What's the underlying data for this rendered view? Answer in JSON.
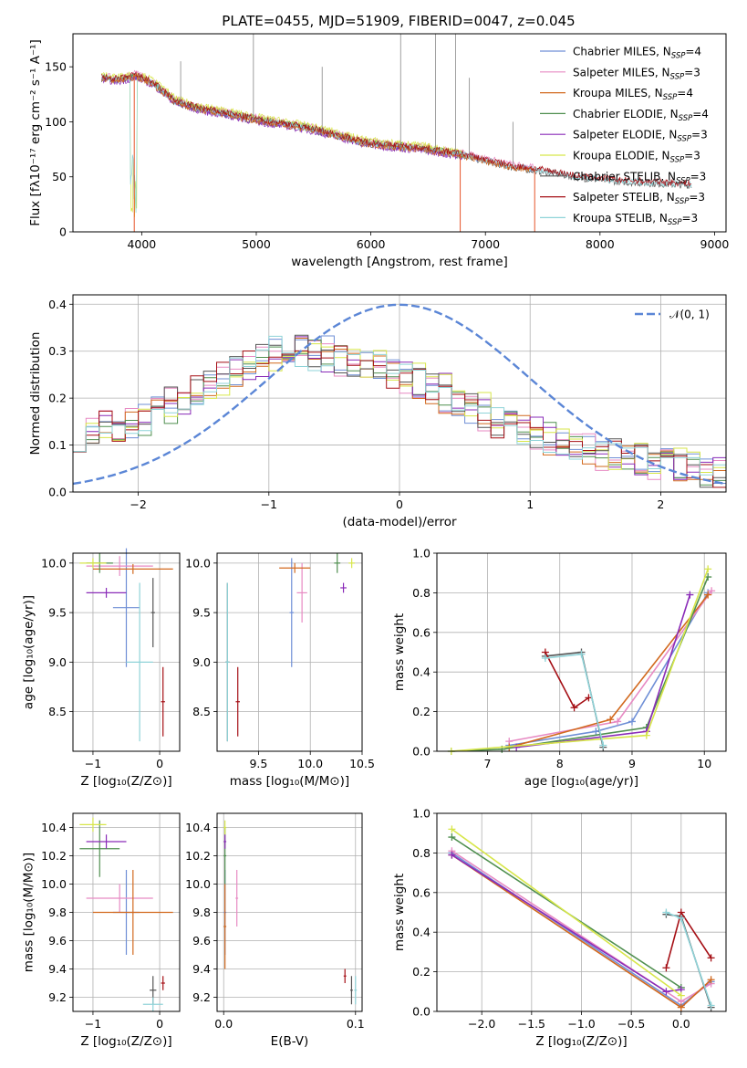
{
  "title": "PLATE=0455, MJD=51909, FIBERID=0047, z=0.045",
  "colors": {
    "Chabrier MILES": "#6f8fd6",
    "Salpeter MILES": "#e78ac3",
    "Kroupa MILES": "#d2691e",
    "Chabrier ELODIE": "#4f8f4f",
    "Salpeter ELODIE": "#8a2bb8",
    "Kroupa ELODIE": "#d7e64a",
    "Chabrier STELIB": "#555555",
    "Salpeter STELIB": "#a50f15",
    "Kroupa STELIB": "#8fd3d8",
    "normal": "#5b86d6",
    "spec_orange": "#e6542a"
  },
  "chart_data": [
    {
      "type": "line",
      "xlabel": "wavelength [Angstrom, rest frame]",
      "ylabel": "Flux [fλ10⁻¹⁷ erg cm⁻² s⁻¹ A⁻¹]",
      "xlim": [
        3400,
        9100
      ],
      "ylim": [
        0,
        180
      ],
      "xticks": [
        "4000",
        "5000",
        "6000",
        "7000",
        "8000",
        "9000"
      ],
      "yticks": [
        "0",
        "50",
        "100",
        "150"
      ],
      "legend_position": "top-right",
      "legend": [
        {
          "name": "Chabrier MILES",
          "nssp": "4"
        },
        {
          "name": "Salpeter MILES",
          "nssp": "3"
        },
        {
          "name": "Kroupa MILES",
          "nssp": "4"
        },
        {
          "name": "Chabrier ELODIE",
          "nssp": "4"
        },
        {
          "name": "Salpeter ELODIE",
          "nssp": "3"
        },
        {
          "name": "Kroupa ELODIE",
          "nssp": "3"
        },
        {
          "name": "Chabrier STELIB",
          "nssp": "3"
        },
        {
          "name": "Salpeter STELIB",
          "nssp": "3"
        },
        {
          "name": "Kroupa STELIB",
          "nssp": "3"
        }
      ],
      "continuum": {
        "x": [
          3650,
          3800,
          3950,
          4100,
          4300,
          4500,
          4700,
          4900,
          5100,
          5300,
          5500,
          5700,
          5900,
          6100,
          6300,
          6500,
          6600,
          6800,
          7000,
          7200,
          7400,
          7600,
          7800,
          8000,
          8200,
          8400,
          8600,
          8800
        ],
        "y": [
          140,
          138,
          142,
          135,
          118,
          112,
          108,
          104,
          100,
          97,
          93,
          88,
          82,
          79,
          77,
          75,
          73,
          70,
          65,
          60,
          57,
          54,
          50,
          48,
          46,
          45,
          44,
          43
        ]
      },
      "drops": [
        {
          "x": 3935,
          "y": 0
        },
        {
          "x": 6780,
          "y": 0
        },
        {
          "x": 7430,
          "y": 0
        }
      ],
      "spikes": [
        {
          "x": 4340,
          "y": 155
        },
        {
          "x": 4975,
          "y": 180
        },
        {
          "x": 5575,
          "y": 150
        },
        {
          "x": 6260,
          "y": 180
        },
        {
          "x": 6565,
          "y": 180
        },
        {
          "x": 6740,
          "y": 180
        },
        {
          "x": 6860,
          "y": 140
        },
        {
          "x": 7240,
          "y": 100
        }
      ]
    },
    {
      "type": "line",
      "xlabel": "(data-model)/error",
      "ylabel": "Normed distribution",
      "xlim": [
        -2.5,
        2.5
      ],
      "ylim": [
        0,
        0.42
      ],
      "xticks": [
        "−2",
        "−1",
        "0",
        "1",
        "2"
      ],
      "yticks": [
        "0.0",
        "0.1",
        "0.2",
        "0.3",
        "0.4"
      ],
      "legend_position": "top-right",
      "legend": [
        {
          "name": "𝒩(0, 1)"
        }
      ],
      "bin_width": 0.1,
      "series_base": {
        "x": [
          -2.45,
          -2.35,
          -2.25,
          -2.15,
          -2.05,
          -1.95,
          -1.85,
          -1.75,
          -1.65,
          -1.55,
          -1.45,
          -1.35,
          -1.25,
          -1.15,
          -1.05,
          -0.95,
          -0.85,
          -0.75,
          -0.65,
          -0.55,
          -0.45,
          -0.35,
          -0.25,
          -0.15,
          -0.05,
          0.05,
          0.15,
          0.25,
          0.35,
          0.45,
          0.55,
          0.65,
          0.75,
          0.85,
          0.95,
          1.05,
          1.15,
          1.25,
          1.35,
          1.45,
          1.55,
          1.65,
          1.75,
          1.85,
          1.95,
          2.05,
          2.15,
          2.25,
          2.35,
          2.45
        ],
        "y": [
          0.12,
          0.13,
          0.14,
          0.14,
          0.15,
          0.16,
          0.17,
          0.19,
          0.2,
          0.22,
          0.23,
          0.25,
          0.26,
          0.28,
          0.29,
          0.3,
          0.3,
          0.3,
          0.29,
          0.3,
          0.28,
          0.27,
          0.27,
          0.26,
          0.25,
          0.24,
          0.23,
          0.22,
          0.2,
          0.19,
          0.18,
          0.16,
          0.15,
          0.14,
          0.13,
          0.12,
          0.11,
          0.1,
          0.1,
          0.09,
          0.08,
          0.08,
          0.07,
          0.07,
          0.06,
          0.06,
          0.05,
          0.05,
          0.04,
          0.04
        ]
      },
      "normal": {
        "mean": 0,
        "sd": 1
      }
    },
    {
      "type": "scatter",
      "xlabel": "Z [log₁₀(Z/Z⊙)]",
      "ylabel": "age  [log₁₀(age/yr)]",
      "xlim": [
        -1.3,
        0.3
      ],
      "ylim": [
        8.1,
        10.1
      ],
      "xticks": [
        "−1",
        "0"
      ],
      "yticks": [
        "8.5",
        "9.0",
        "9.5",
        "10.0"
      ],
      "points": [
        {
          "s": "Chabrier MILES",
          "x": -0.5,
          "y": 9.55,
          "ex": 0.2,
          "ey": 0.6
        },
        {
          "s": "Salpeter MILES",
          "x": -0.6,
          "y": 9.97,
          "ex": 0.5,
          "ey": 0.1
        },
        {
          "s": "Kroupa MILES",
          "x": -0.4,
          "y": 9.94,
          "ex": 0.6,
          "ey": 0.05
        },
        {
          "s": "Chabrier ELODIE",
          "x": -0.9,
          "y": 10.0,
          "ex": 0.2,
          "ey": 0.1
        },
        {
          "s": "Salpeter ELODIE",
          "x": -0.8,
          "y": 9.7,
          "ex": 0.3,
          "ey": 0.05
        },
        {
          "s": "Kroupa ELODIE",
          "x": -1.0,
          "y": 10.0,
          "ex": 0.2,
          "ey": 0.05
        },
        {
          "s": "Chabrier STELIB",
          "x": -0.1,
          "y": 9.5,
          "ex": 0.03,
          "ey": 0.35
        },
        {
          "s": "Salpeter STELIB",
          "x": 0.05,
          "y": 8.6,
          "ex": 0.03,
          "ey": 0.35
        },
        {
          "s": "Kroupa STELIB",
          "x": -0.3,
          "y": 9.0,
          "ex": 0.2,
          "ey": 0.8
        }
      ]
    },
    {
      "type": "scatter",
      "xlabel": "mass [log₁₀(M/M⊙)]",
      "ylabel": "",
      "xlim": [
        9.1,
        10.5
      ],
      "ylim": [
        8.1,
        10.1
      ],
      "xticks": [
        "9.5",
        "10.0",
        "10.5"
      ],
      "yticks": [
        "8.5",
        "9.0",
        "9.5",
        "10.0"
      ],
      "points": [
        {
          "s": "Chabrier MILES",
          "x": 9.82,
          "y": 9.5,
          "ex": 0.02,
          "ey": 0.55
        },
        {
          "s": "Salpeter MILES",
          "x": 9.92,
          "y": 9.7,
          "ex": 0.05,
          "ey": 0.3
        },
        {
          "s": "Kroupa MILES",
          "x": 9.85,
          "y": 9.95,
          "ex": 0.15,
          "ey": 0.05
        },
        {
          "s": "Chabrier ELODIE",
          "x": 10.26,
          "y": 10.0,
          "ex": 0.03,
          "ey": 0.1
        },
        {
          "s": "Salpeter ELODIE",
          "x": 10.32,
          "y": 9.75,
          "ex": 0.03,
          "ey": 0.05
        },
        {
          "s": "Kroupa ELODIE",
          "x": 10.4,
          "y": 10.0,
          "ex": 0.03,
          "ey": 0.05
        },
        {
          "s": "Chabrier STELIB",
          "x": 9.2,
          "y": 9.0,
          "ex": 0.02,
          "ey": 0.8
        },
        {
          "s": "Salpeter STELIB",
          "x": 9.3,
          "y": 8.6,
          "ex": 0.02,
          "ey": 0.35
        },
        {
          "s": "Kroupa STELIB",
          "x": 9.2,
          "y": 9.0,
          "ex": 0.02,
          "ey": 0.8
        }
      ]
    },
    {
      "type": "line",
      "xlabel": "age  [log₁₀(age/yr)]",
      "ylabel": "mass weight",
      "xlim": [
        6.3,
        10.3
      ],
      "ylim": [
        0,
        1.0
      ],
      "xticks": [
        "7",
        "8",
        "9",
        "10"
      ],
      "yticks": [
        "0.0",
        "0.2",
        "0.4",
        "0.6",
        "0.8",
        "1.0"
      ],
      "series": [
        {
          "name": "Chabrier MILES",
          "x": [
            7.3,
            8.5,
            9.0,
            10.05
          ],
          "y": [
            0.03,
            0.1,
            0.15,
            0.8
          ]
        },
        {
          "name": "Salpeter MILES",
          "x": [
            7.3,
            8.8,
            10.1
          ],
          "y": [
            0.05,
            0.15,
            0.81
          ]
        },
        {
          "name": "Kroupa MILES",
          "x": [
            7.3,
            8.7,
            10.05
          ],
          "y": [
            0.02,
            0.16,
            0.79
          ]
        },
        {
          "name": "Chabrier ELODIE",
          "x": [
            6.5,
            7.2,
            9.2,
            10.05
          ],
          "y": [
            0.0,
            0.01,
            0.12,
            0.88
          ]
        },
        {
          "name": "Salpeter ELODIE",
          "x": [
            7.4,
            9.2,
            9.8
          ],
          "y": [
            0.02,
            0.1,
            0.79
          ]
        },
        {
          "name": "Kroupa ELODIE",
          "x": [
            6.5,
            9.2,
            10.05
          ],
          "y": [
            0.0,
            0.08,
            0.92
          ]
        },
        {
          "name": "Chabrier STELIB",
          "x": [
            7.8,
            8.3,
            8.6
          ],
          "y": [
            0.48,
            0.5,
            0.02
          ]
        },
        {
          "name": "Salpeter STELIB",
          "x": [
            7.8,
            8.2,
            8.4
          ],
          "y": [
            0.5,
            0.22,
            0.27
          ]
        },
        {
          "name": "Kroupa STELIB",
          "x": [
            7.8,
            8.3,
            8.6
          ],
          "y": [
            0.47,
            0.49,
            0.03
          ]
        }
      ]
    },
    {
      "type": "scatter",
      "xlabel": "Z [log₁₀(Z/Z⊙)]",
      "ylabel": "mass [log₁₀(M/M⊙)]",
      "xlim": [
        -1.3,
        0.3
      ],
      "ylim": [
        9.1,
        10.5
      ],
      "xticks": [
        "−1",
        "0"
      ],
      "yticks": [
        "9.2",
        "9.4",
        "9.6",
        "9.8",
        "10.0",
        "10.2",
        "10.4"
      ],
      "points": [
        {
          "s": "Chabrier MILES",
          "x": -0.5,
          "y": 9.8,
          "ex": 0.2,
          "ey": 0.3
        },
        {
          "s": "Salpeter MILES",
          "x": -0.6,
          "y": 9.9,
          "ex": 0.5,
          "ey": 0.1
        },
        {
          "s": "Kroupa MILES",
          "x": -0.4,
          "y": 9.8,
          "ex": 0.6,
          "ey": 0.3
        },
        {
          "s": "Chabrier ELODIE",
          "x": -0.9,
          "y": 10.25,
          "ex": 0.3,
          "ey": 0.2
        },
        {
          "s": "Salpeter ELODIE",
          "x": -0.8,
          "y": 10.3,
          "ex": 0.3,
          "ey": 0.05
        },
        {
          "s": "Kroupa ELODIE",
          "x": -1.0,
          "y": 10.42,
          "ex": 0.2,
          "ey": 0.05
        },
        {
          "s": "Chabrier STELIB",
          "x": -0.1,
          "y": 9.25,
          "ex": 0.05,
          "ey": 0.1
        },
        {
          "s": "Salpeter STELIB",
          "x": 0.05,
          "y": 9.3,
          "ex": 0.03,
          "ey": 0.05
        },
        {
          "s": "Kroupa STELIB",
          "x": -0.1,
          "y": 9.15,
          "ex": 0.15,
          "ey": 0.05
        }
      ]
    },
    {
      "type": "scatter",
      "xlabel": "E(B-V)",
      "ylabel": "",
      "xlim": [
        -0.005,
        0.105
      ],
      "ylim": [
        9.1,
        10.5
      ],
      "xticks": [
        "0.0",
        "0.1"
      ],
      "yticks": [
        "9.2",
        "9.4",
        "9.6",
        "9.8",
        "10.0",
        "10.2",
        "10.4"
      ],
      "points": [
        {
          "s": "Chabrier MILES",
          "x": 0.001,
          "y": 9.8,
          "ex": 0.001,
          "ey": 0.3
        },
        {
          "s": "Salpeter MILES",
          "x": 0.01,
          "y": 9.9,
          "ex": 0.001,
          "ey": 0.2
        },
        {
          "s": "Kroupa MILES",
          "x": 0.001,
          "y": 9.7,
          "ex": 0.001,
          "ey": 0.3
        },
        {
          "s": "Chabrier ELODIE",
          "x": 0.001,
          "y": 10.2,
          "ex": 0.001,
          "ey": 0.2
        },
        {
          "s": "Salpeter ELODIE",
          "x": 0.001,
          "y": 10.3,
          "ex": 0.001,
          "ey": 0.05
        },
        {
          "s": "Kroupa ELODIE",
          "x": 0.001,
          "y": 10.4,
          "ex": 0.001,
          "ey": 0.05
        },
        {
          "s": "Chabrier STELIB",
          "x": 0.097,
          "y": 9.25,
          "ex": 0.001,
          "ey": 0.1
        },
        {
          "s": "Salpeter STELIB",
          "x": 0.092,
          "y": 9.35,
          "ex": 0.001,
          "ey": 0.05
        },
        {
          "s": "Kroupa STELIB",
          "x": 0.1,
          "y": 9.25,
          "ex": 0.001,
          "ey": 0.1
        }
      ]
    },
    {
      "type": "line",
      "xlabel": "Z [log₁₀(Z/Z⊙)]",
      "ylabel": "mass weight",
      "xlim": [
        -2.45,
        0.45
      ],
      "ylim": [
        0,
        1.0
      ],
      "xticks": [
        "−2.0",
        "−1.5",
        "−1.0",
        "−0.5",
        "0.0"
      ],
      "yticks": [
        "0.0",
        "0.2",
        "0.4",
        "0.6",
        "0.8",
        "1.0"
      ],
      "series": [
        {
          "name": "Chabrier MILES",
          "x": [
            -2.3,
            0.0,
            0.3
          ],
          "y": [
            0.8,
            0.03,
            0.15
          ]
        },
        {
          "name": "Salpeter MILES",
          "x": [
            -2.3,
            0.0,
            0.3
          ],
          "y": [
            0.81,
            0.05,
            0.14
          ]
        },
        {
          "name": "Kroupa MILES",
          "x": [
            -2.3,
            0.0,
            0.3
          ],
          "y": [
            0.79,
            0.02,
            0.16
          ]
        },
        {
          "name": "Chabrier ELODIE",
          "x": [
            -2.3,
            0.0
          ],
          "y": [
            0.88,
            0.12
          ]
        },
        {
          "name": "Salpeter ELODIE",
          "x": [
            -2.3,
            -0.15,
            0.0
          ],
          "y": [
            0.79,
            0.1,
            0.11
          ]
        },
        {
          "name": "Kroupa ELODIE",
          "x": [
            -2.3,
            0.0
          ],
          "y": [
            0.92,
            0.08
          ]
        },
        {
          "name": "Chabrier STELIB",
          "x": [
            -0.15,
            0.0,
            0.3
          ],
          "y": [
            0.49,
            0.48,
            0.02
          ]
        },
        {
          "name": "Salpeter STELIB",
          "x": [
            -0.15,
            0.0,
            0.3
          ],
          "y": [
            0.22,
            0.5,
            0.27
          ]
        },
        {
          "name": "Kroupa STELIB",
          "x": [
            -0.15,
            0.0,
            0.3
          ],
          "y": [
            0.5,
            0.47,
            0.03
          ]
        }
      ]
    }
  ]
}
